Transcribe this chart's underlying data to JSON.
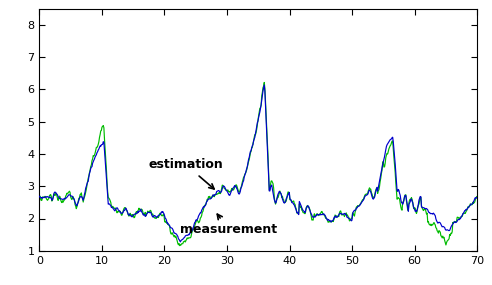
{
  "xlim": [
    0,
    70
  ],
  "ylim": [
    1,
    8.5
  ],
  "yticks": [
    1,
    2,
    3,
    4,
    5,
    6,
    7,
    8
  ],
  "xticks": [
    0,
    10,
    20,
    30,
    40,
    50,
    60,
    70
  ],
  "estimation_color": "#0000cc",
  "measurement_color": "#00bb00",
  "linewidth": 0.85,
  "annotation_estimation": "estimation",
  "annotation_measurement": "measurement",
  "annotation_fontsize": 9,
  "figsize": [
    4.92,
    2.85
  ],
  "dpi": 100,
  "bg_color": "#f0f0e8"
}
